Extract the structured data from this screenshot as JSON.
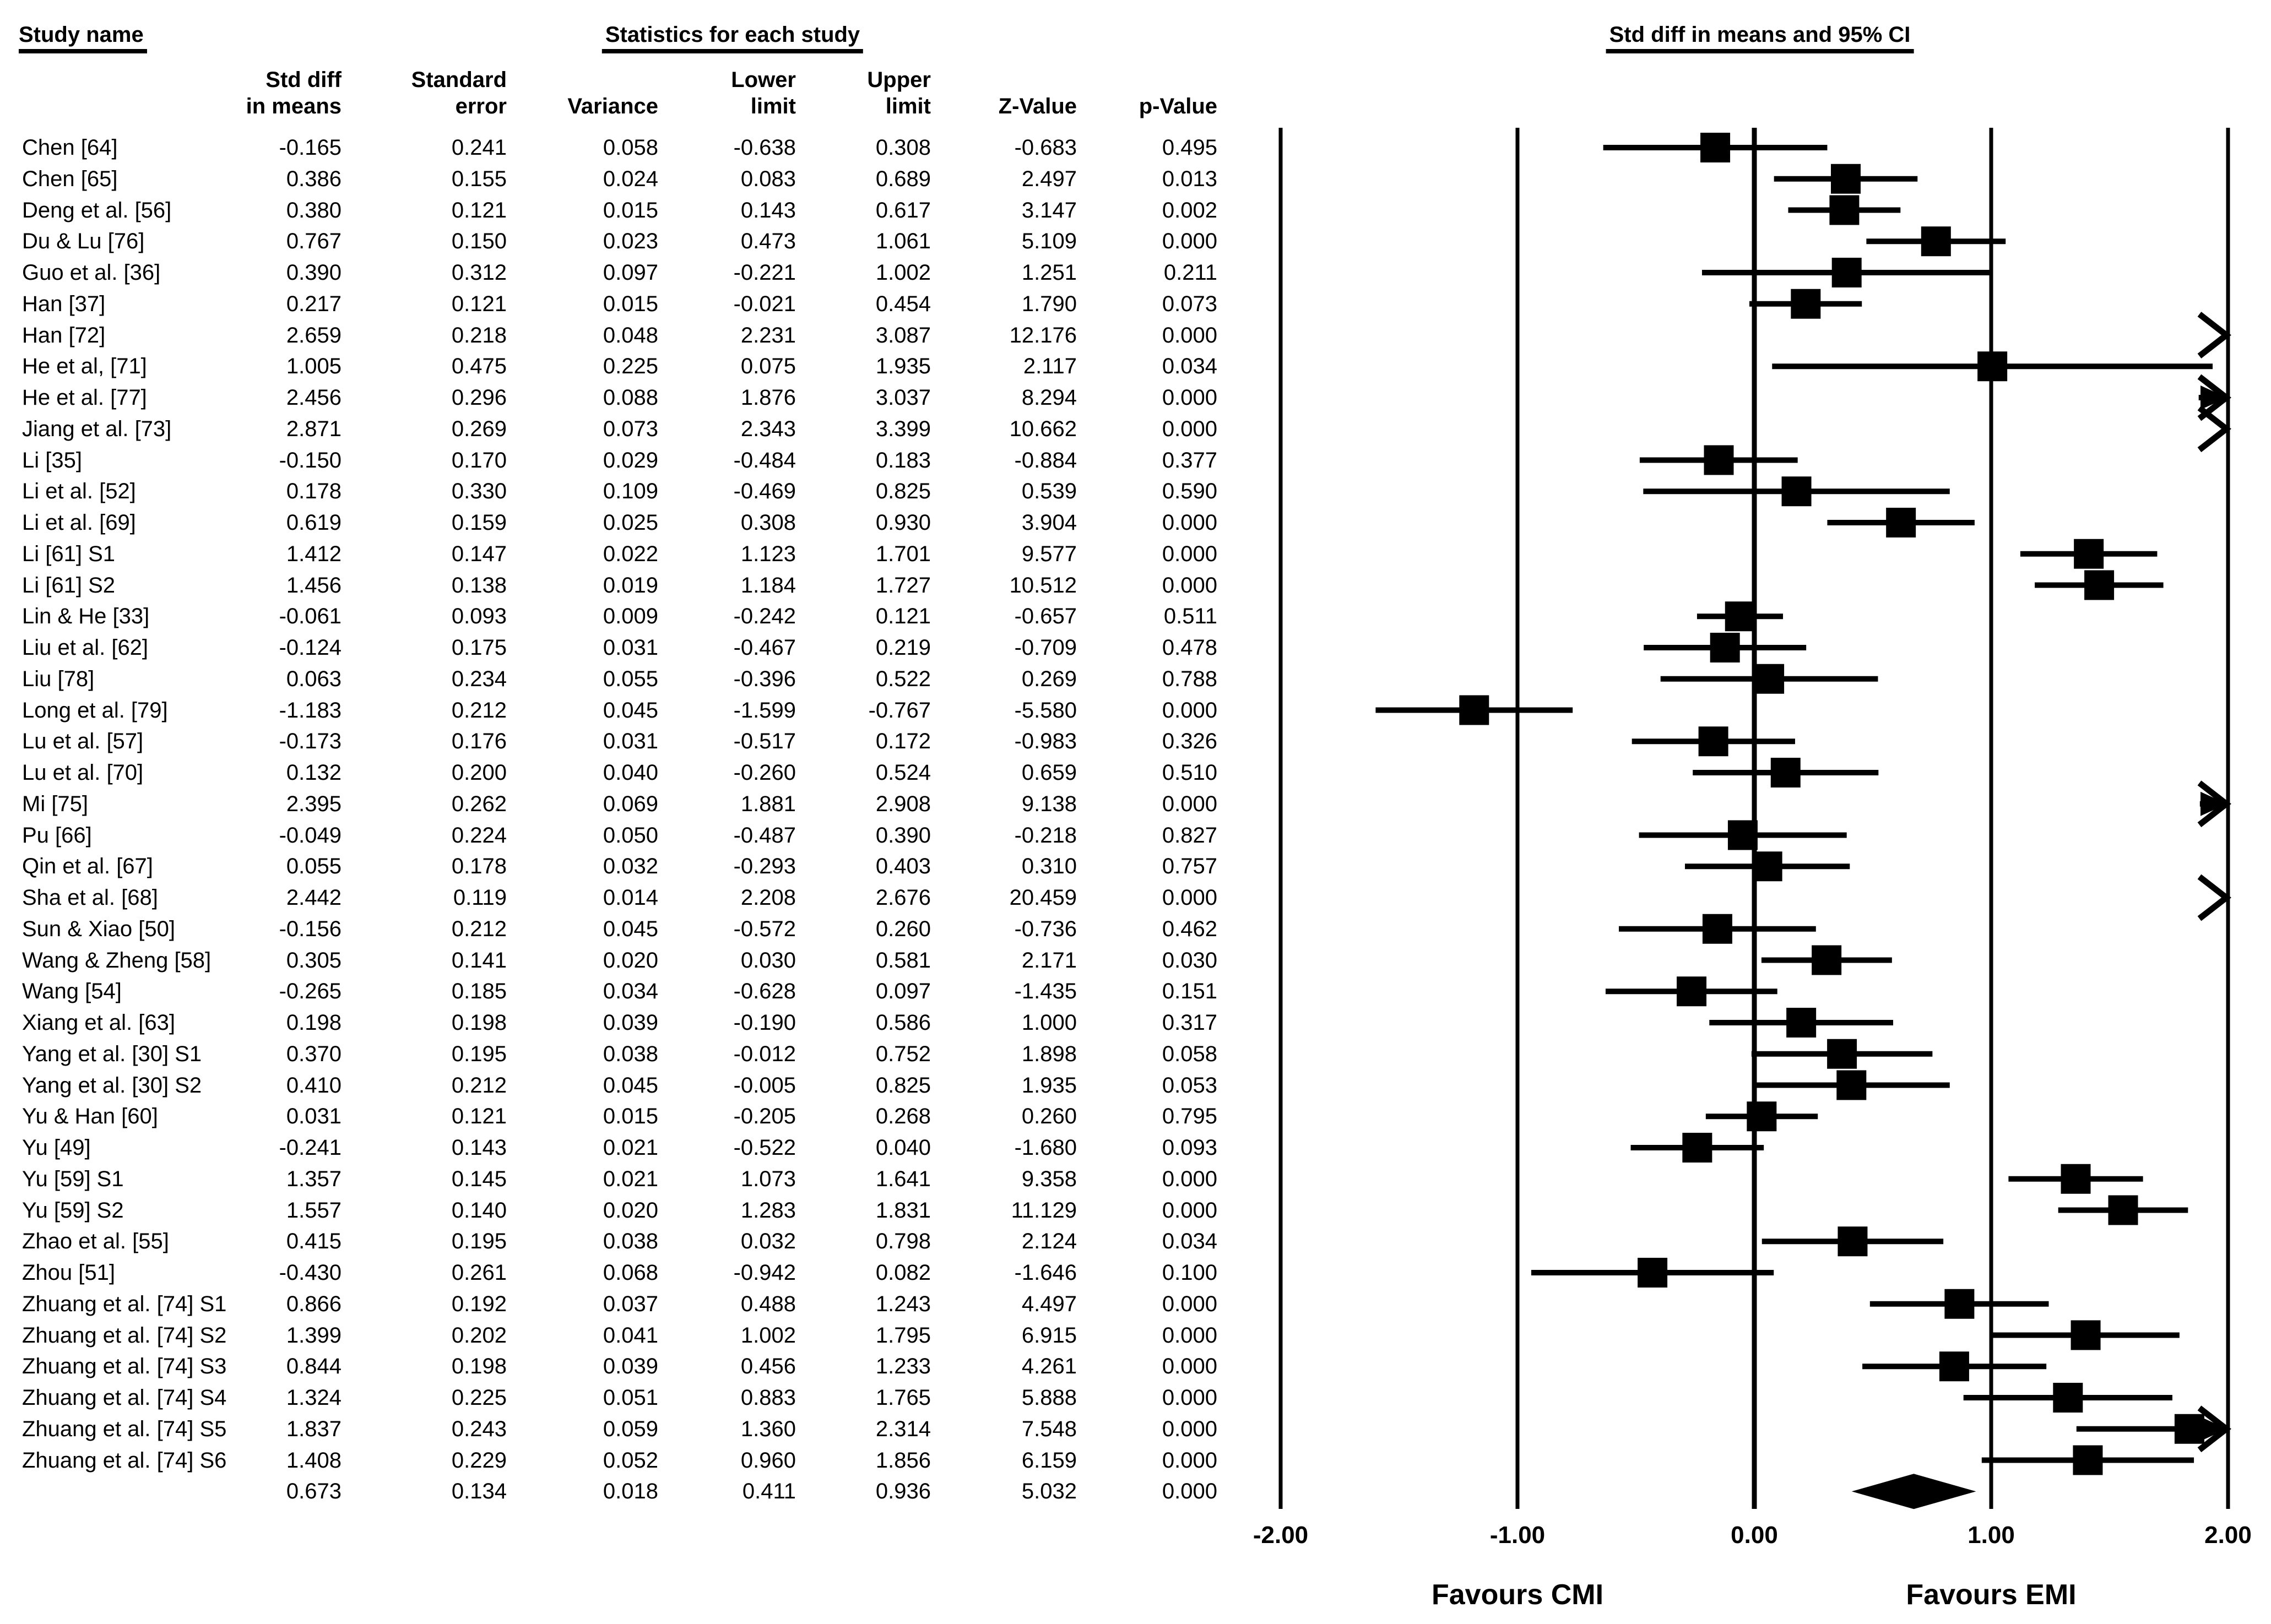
{
  "headers": {
    "study_name": "Study name",
    "statistics": "Statistics for each study",
    "ci": "Std diff in means and 95%  CI"
  },
  "columns": [
    {
      "key": "std_diff",
      "label_line1": "Std diff",
      "label_line2": "in means"
    },
    {
      "key": "std_err",
      "label_line1": "Standard",
      "label_line2": "error"
    },
    {
      "key": "variance",
      "label_line1": "",
      "label_line2": "Variance"
    },
    {
      "key": "lower",
      "label_line1": "Lower",
      "label_line2": "limit"
    },
    {
      "key": "upper",
      "label_line1": "Upper",
      "label_line2": "limit"
    },
    {
      "key": "z",
      "label_line1": "",
      "label_line2": "Z-Value"
    },
    {
      "key": "p",
      "label_line1": "",
      "label_line2": "p-Value"
    }
  ],
  "favours": {
    "left": "Favours CMI",
    "right": "Favours EMI"
  },
  "chart_data": {
    "type": "forest",
    "title": "Std diff in means and 95% CI",
    "xlim": [
      -2,
      2
    ],
    "x_tick_labels": [
      "-2.00",
      "-1.00",
      "0.00",
      "1.00",
      "2.00"
    ],
    "x_tick_values": [
      -2,
      -1,
      0,
      1,
      2
    ],
    "legend_left": "Favours CMI",
    "legend_right": "Favours EMI",
    "studies": [
      {
        "name": "Chen [64]",
        "std_diff": "-0.165",
        "std_err": "0.241",
        "variance": "0.058",
        "lower": "-0.638",
        "upper": "0.308",
        "z": "-0.683",
        "p": "0.495"
      },
      {
        "name": "Chen [65]",
        "std_diff": "0.386",
        "std_err": "0.155",
        "variance": "0.024",
        "lower": "0.083",
        "upper": "0.689",
        "z": "2.497",
        "p": "0.013"
      },
      {
        "name": "Deng et al. [56]",
        "std_diff": "0.380",
        "std_err": "0.121",
        "variance": "0.015",
        "lower": "0.143",
        "upper": "0.617",
        "z": "3.147",
        "p": "0.002"
      },
      {
        "name": "Du & Lu [76]",
        "std_diff": "0.767",
        "std_err": "0.150",
        "variance": "0.023",
        "lower": "0.473",
        "upper": "1.061",
        "z": "5.109",
        "p": "0.000"
      },
      {
        "name": "Guo et al. [36]",
        "std_diff": "0.390",
        "std_err": "0.312",
        "variance": "0.097",
        "lower": "-0.221",
        "upper": "1.002",
        "z": "1.251",
        "p": "0.211"
      },
      {
        "name": "Han [37]",
        "std_diff": "0.217",
        "std_err": "0.121",
        "variance": "0.015",
        "lower": "-0.021",
        "upper": "0.454",
        "z": "1.790",
        "p": "0.073"
      },
      {
        "name": "Han [72]",
        "std_diff": "2.659",
        "std_err": "0.218",
        "variance": "0.048",
        "lower": "2.231",
        "upper": "3.087",
        "z": "12.176",
        "p": "0.000"
      },
      {
        "name": "He et al, [71]",
        "std_diff": "1.005",
        "std_err": "0.475",
        "variance": "0.225",
        "lower": "0.075",
        "upper": "1.935",
        "z": "2.117",
        "p": "0.034"
      },
      {
        "name": "He et al. [77]",
        "std_diff": "2.456",
        "std_err": "0.296",
        "variance": "0.088",
        "lower": "1.876",
        "upper": "3.037",
        "z": "8.294",
        "p": "0.000"
      },
      {
        "name": "Jiang et al. [73]",
        "std_diff": "2.871",
        "std_err": "0.269",
        "variance": "0.073",
        "lower": "2.343",
        "upper": "3.399",
        "z": "10.662",
        "p": "0.000"
      },
      {
        "name": "Li [35]",
        "std_diff": "-0.150",
        "std_err": "0.170",
        "variance": "0.029",
        "lower": "-0.484",
        "upper": "0.183",
        "z": "-0.884",
        "p": "0.377"
      },
      {
        "name": "Li et al. [52]",
        "std_diff": "0.178",
        "std_err": "0.330",
        "variance": "0.109",
        "lower": "-0.469",
        "upper": "0.825",
        "z": "0.539",
        "p": "0.590"
      },
      {
        "name": "Li et al. [69]",
        "std_diff": "0.619",
        "std_err": "0.159",
        "variance": "0.025",
        "lower": "0.308",
        "upper": "0.930",
        "z": "3.904",
        "p": "0.000"
      },
      {
        "name": "Li [61] S1",
        "std_diff": "1.412",
        "std_err": "0.147",
        "variance": "0.022",
        "lower": "1.123",
        "upper": "1.701",
        "z": "9.577",
        "p": "0.000"
      },
      {
        "name": "Li [61] S2",
        "std_diff": "1.456",
        "std_err": "0.138",
        "variance": "0.019",
        "lower": "1.184",
        "upper": "1.727",
        "z": "10.512",
        "p": "0.000"
      },
      {
        "name": "Lin & He [33]",
        "std_diff": "-0.061",
        "std_err": "0.093",
        "variance": "0.009",
        "lower": "-0.242",
        "upper": "0.121",
        "z": "-0.657",
        "p": "0.511"
      },
      {
        "name": "Liu et al. [62]",
        "std_diff": "-0.124",
        "std_err": "0.175",
        "variance": "0.031",
        "lower": "-0.467",
        "upper": "0.219",
        "z": "-0.709",
        "p": "0.478"
      },
      {
        "name": "Liu [78]",
        "std_diff": "0.063",
        "std_err": "0.234",
        "variance": "0.055",
        "lower": "-0.396",
        "upper": "0.522",
        "z": "0.269",
        "p": "0.788"
      },
      {
        "name": "Long et al. [79]",
        "std_diff": "-1.183",
        "std_err": "0.212",
        "variance": "0.045",
        "lower": "-1.599",
        "upper": "-0.767",
        "z": "-5.580",
        "p": "0.000"
      },
      {
        "name": "Lu et al. [57]",
        "std_diff": "-0.173",
        "std_err": "0.176",
        "variance": "0.031",
        "lower": "-0.517",
        "upper": "0.172",
        "z": "-0.983",
        "p": "0.326"
      },
      {
        "name": "Lu et al. [70]",
        "std_diff": "0.132",
        "std_err": "0.200",
        "variance": "0.040",
        "lower": "-0.260",
        "upper": "0.524",
        "z": "0.659",
        "p": "0.510"
      },
      {
        "name": "Mi [75]",
        "std_diff": "2.395",
        "std_err": "0.262",
        "variance": "0.069",
        "lower": "1.881",
        "upper": "2.908",
        "z": "9.138",
        "p": "0.000"
      },
      {
        "name": "Pu [66]",
        "std_diff": "-0.049",
        "std_err": "0.224",
        "variance": "0.050",
        "lower": "-0.487",
        "upper": "0.390",
        "z": "-0.218",
        "p": "0.827"
      },
      {
        "name": "Qin et al. [67]",
        "std_diff": "0.055",
        "std_err": "0.178",
        "variance": "0.032",
        "lower": "-0.293",
        "upper": "0.403",
        "z": "0.310",
        "p": "0.757"
      },
      {
        "name": "Sha et al. [68]",
        "std_diff": "2.442",
        "std_err": "0.119",
        "variance": "0.014",
        "lower": "2.208",
        "upper": "2.676",
        "z": "20.459",
        "p": "0.000"
      },
      {
        "name": "Sun & Xiao [50]",
        "std_diff": "-0.156",
        "std_err": "0.212",
        "variance": "0.045",
        "lower": "-0.572",
        "upper": "0.260",
        "z": "-0.736",
        "p": "0.462"
      },
      {
        "name": "Wang & Zheng [58]",
        "std_diff": "0.305",
        "std_err": "0.141",
        "variance": "0.020",
        "lower": "0.030",
        "upper": "0.581",
        "z": "2.171",
        "p": "0.030"
      },
      {
        "name": "Wang [54]",
        "std_diff": "-0.265",
        "std_err": "0.185",
        "variance": "0.034",
        "lower": "-0.628",
        "upper": "0.097",
        "z": "-1.435",
        "p": "0.151"
      },
      {
        "name": "Xiang et al. [63]",
        "std_diff": "0.198",
        "std_err": "0.198",
        "variance": "0.039",
        "lower": "-0.190",
        "upper": "0.586",
        "z": "1.000",
        "p": "0.317"
      },
      {
        "name": "Yang et al. [30] S1",
        "std_diff": "0.370",
        "std_err": "0.195",
        "variance": "0.038",
        "lower": "-0.012",
        "upper": "0.752",
        "z": "1.898",
        "p": "0.058"
      },
      {
        "name": "Yang et al. [30] S2",
        "std_diff": "0.410",
        "std_err": "0.212",
        "variance": "0.045",
        "lower": "-0.005",
        "upper": "0.825",
        "z": "1.935",
        "p": "0.053"
      },
      {
        "name": "Yu & Han [60]",
        "std_diff": "0.031",
        "std_err": "0.121",
        "variance": "0.015",
        "lower": "-0.205",
        "upper": "0.268",
        "z": "0.260",
        "p": "0.795"
      },
      {
        "name": "Yu [49]",
        "std_diff": "-0.241",
        "std_err": "0.143",
        "variance": "0.021",
        "lower": "-0.522",
        "upper": "0.040",
        "z": "-1.680",
        "p": "0.093"
      },
      {
        "name": "Yu [59] S1",
        "std_diff": "1.357",
        "std_err": "0.145",
        "variance": "0.021",
        "lower": "1.073",
        "upper": "1.641",
        "z": "9.358",
        "p": "0.000"
      },
      {
        "name": "Yu [59] S2",
        "std_diff": "1.557",
        "std_err": "0.140",
        "variance": "0.020",
        "lower": "1.283",
        "upper": "1.831",
        "z": "11.129",
        "p": "0.000"
      },
      {
        "name": "Zhao et al. [55]",
        "std_diff": "0.415",
        "std_err": "0.195",
        "variance": "0.038",
        "lower": "0.032",
        "upper": "0.798",
        "z": "2.124",
        "p": "0.034"
      },
      {
        "name": "Zhou [51]",
        "std_diff": "-0.430",
        "std_err": "0.261",
        "variance": "0.068",
        "lower": "-0.942",
        "upper": "0.082",
        "z": "-1.646",
        "p": "0.100"
      },
      {
        "name": "Zhuang et al. [74] S1",
        "std_diff": "0.866",
        "std_err": "0.192",
        "variance": "0.037",
        "lower": "0.488",
        "upper": "1.243",
        "z": "4.497",
        "p": "0.000"
      },
      {
        "name": "Zhuang et al. [74] S2",
        "std_diff": "1.399",
        "std_err": "0.202",
        "variance": "0.041",
        "lower": "1.002",
        "upper": "1.795",
        "z": "6.915",
        "p": "0.000"
      },
      {
        "name": "Zhuang et al. [74] S3",
        "std_diff": "0.844",
        "std_err": "0.198",
        "variance": "0.039",
        "lower": "0.456",
        "upper": "1.233",
        "z": "4.261",
        "p": "0.000"
      },
      {
        "name": "Zhuang et al. [74] S4",
        "std_diff": "1.324",
        "std_err": "0.225",
        "variance": "0.051",
        "lower": "0.883",
        "upper": "1.765",
        "z": "5.888",
        "p": "0.000"
      },
      {
        "name": "Zhuang et al. [74] S5",
        "std_diff": "1.837",
        "std_err": "0.243",
        "variance": "0.059",
        "lower": "1.360",
        "upper": "2.314",
        "z": "7.548",
        "p": "0.000"
      },
      {
        "name": "Zhuang et al. [74] S6",
        "std_diff": "1.408",
        "std_err": "0.229",
        "variance": "0.052",
        "lower": "0.960",
        "upper": "1.856",
        "z": "6.159",
        "p": "0.000"
      }
    ],
    "overall": {
      "name": "",
      "std_diff": "0.673",
      "std_err": "0.134",
      "variance": "0.018",
      "lower": "0.411",
      "upper": "0.936",
      "z": "5.032",
      "p": "0.000"
    }
  }
}
